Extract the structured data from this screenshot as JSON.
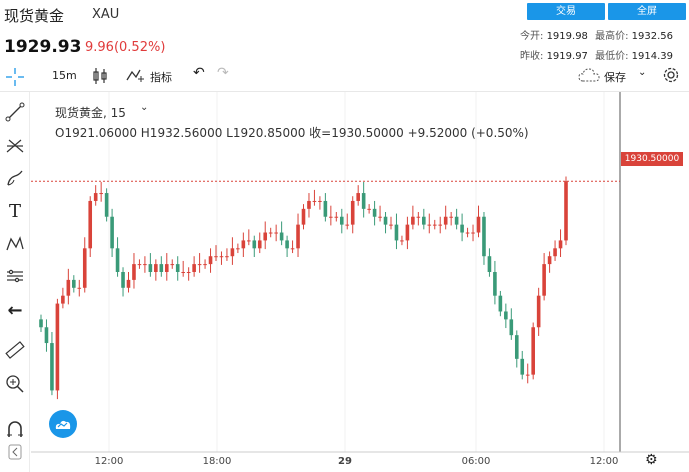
{
  "header": {
    "title": "现货黄金",
    "symbol": "XAU",
    "price": "1929.93",
    "change": "9.96(0.52%)",
    "trade_button": "交易",
    "fullscreen_button": "全屏",
    "stats": {
      "open_label": "今开:",
      "open_value": "1919.98",
      "high_label": "最高价:",
      "high_value": "1932.56",
      "prev_close_label": "昨收:",
      "prev_close_value": "1919.97",
      "low_label": "最低价:",
      "low_value": "1914.39"
    }
  },
  "toolbar": {
    "interval": "15m",
    "indicators_label": "指标",
    "save_label": "保存"
  },
  "chart": {
    "legend_name": "现货黄金, 15",
    "ohlc": "O1921.06000   H1932.56000   L1920.85000   收=1930.50000   +9.52000 (+0.50%)",
    "last_price_tag": "1930.50000",
    "x_labels": [
      "12:00",
      "18:00",
      "29",
      "06:00",
      "12:00"
    ]
  },
  "colors": {
    "up": "#d9433a",
    "down": "#3a9a78",
    "accent": "#1a96e8"
  },
  "chart_data": {
    "type": "candlestick",
    "interval": "15m",
    "x_ticks": [
      "12:00",
      "18:00",
      "29",
      "06:00",
      "12:00"
    ],
    "last_price": 1930.5,
    "closes": [
      1912,
      1910,
      1904,
      1915,
      1916,
      1918,
      1917,
      1917,
      1922,
      1928,
      1929,
      1929,
      1926,
      1922,
      1919,
      1917,
      1918,
      1920,
      1920,
      1920,
      1919,
      1920,
      1919,
      1920,
      1920,
      1919,
      1919,
      1919,
      1920,
      1920,
      1920,
      1921,
      1921,
      1921,
      1921,
      1922,
      1922,
      1923,
      1923,
      1922,
      1923,
      1924,
      1924,
      1924,
      1923,
      1922,
      1922,
      1925,
      1927,
      1928,
      1928,
      1928,
      1926,
      1926,
      1926,
      1925,
      1925,
      1928,
      1929,
      1927,
      1927,
      1926,
      1926,
      1925,
      1925,
      1923,
      1923,
      1925,
      1926,
      1926,
      1925,
      1925,
      1925,
      1925,
      1926,
      1926,
      1925,
      1924,
      1924,
      1924,
      1926,
      1921,
      1919,
      1916,
      1914,
      1913,
      1911,
      1908,
      1906,
      1906,
      1912,
      1916,
      1920,
      1921,
      1922,
      1923,
      1930.5
    ]
  }
}
